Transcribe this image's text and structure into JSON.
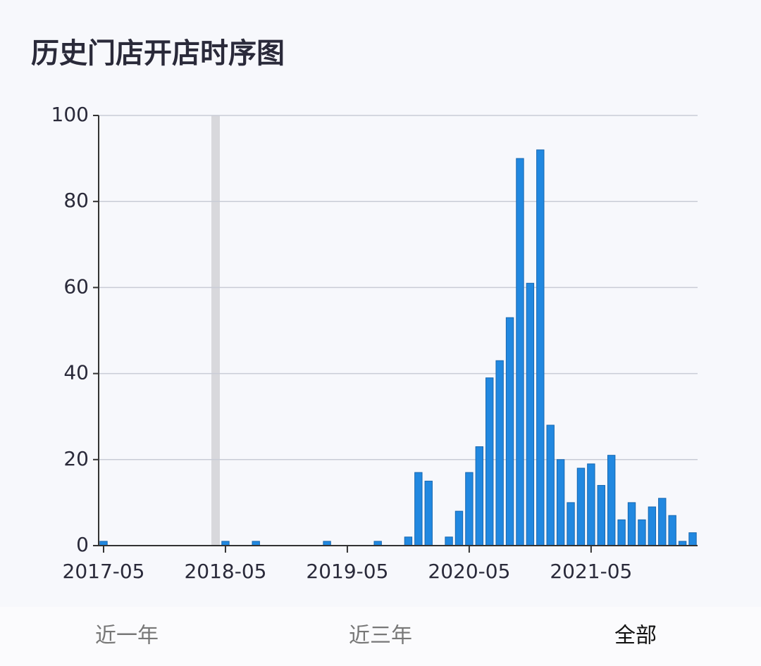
{
  "chart_data": {
    "type": "bar",
    "title": "历史门店开店时序图",
    "x": [
      "2017-05",
      "2018-05",
      "2018-08",
      "2019-03",
      "2019-08",
      "2019-11",
      "2019-12",
      "2020-01",
      "2020-03",
      "2020-04",
      "2020-05",
      "2020-06",
      "2020-07",
      "2020-08",
      "2020-09",
      "2020-10",
      "2020-11",
      "2020-12",
      "2021-01",
      "2021-02",
      "2021-03",
      "2021-04",
      "2021-05",
      "2021-06",
      "2021-07",
      "2021-08",
      "2021-09",
      "2021-10",
      "2021-11",
      "2021-12",
      "2022-01",
      "2022-02",
      "2022-03"
    ],
    "values": [
      1,
      1,
      1,
      1,
      1,
      2,
      17,
      15,
      2,
      8,
      17,
      23,
      39,
      43,
      53,
      90,
      61,
      92,
      28,
      20,
      10,
      18,
      19,
      14,
      21,
      6,
      10,
      6,
      9,
      11,
      7,
      1,
      3
    ],
    "color": "#2188e0",
    "xlim": [
      "2017-05",
      "2022-03"
    ],
    "xticks": [
      "2017-05",
      "2018-05",
      "2019-05",
      "2020-05",
      "2021-05"
    ],
    "ylim": [
      0,
      100
    ],
    "yticks": [
      0,
      20,
      40,
      60,
      80,
      100
    ],
    "grid": true
  },
  "buttons": [
    "近一年",
    "近三年",
    "全部"
  ]
}
